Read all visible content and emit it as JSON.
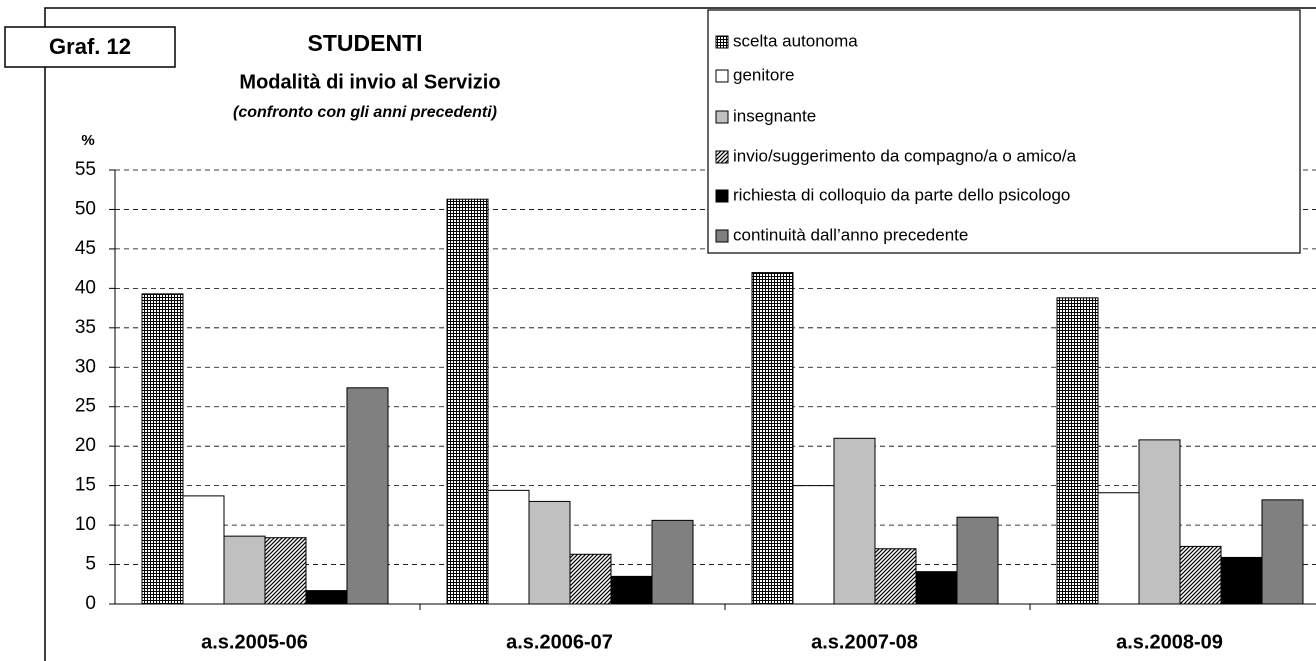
{
  "chart_data": {
    "type": "bar",
    "label": "Graf. 12",
    "title": "STUDENTI",
    "subtitle": "Modalità di invio al Servizio",
    "note": "(confronto con gli anni precedenti)",
    "y_label": "%",
    "categories": [
      "a.s.2005-06",
      "a.s.2006-07",
      "a.s.2007-08",
      "a.s.2008-09"
    ],
    "series": [
      {
        "name": "scelta autonoma",
        "color": "#808080",
        "pattern": "grid",
        "values": [
          39.3,
          51.3,
          42.0,
          38.8
        ]
      },
      {
        "name": "genitore",
        "color": "#ffffff",
        "values": [
          13.7,
          14.4,
          15.0,
          14.1
        ]
      },
      {
        "name": "insegnante",
        "color": "#c0c0c0",
        "values": [
          8.6,
          13.0,
          21.0,
          20.8
        ]
      },
      {
        "name": "invio/suggerimento da compagno/a o amico/a",
        "color": "#606060",
        "pattern": "diagonal",
        "values": [
          8.4,
          6.3,
          7.0,
          7.3
        ]
      },
      {
        "name": "richiesta di colloquio da parte dello psicologo",
        "color": "#000000",
        "values": [
          1.7,
          3.5,
          4.1,
          5.9
        ]
      },
      {
        "name": "continuità dall’anno precedente",
        "color": "#808080",
        "values": [
          27.4,
          10.6,
          11.0,
          13.2
        ]
      }
    ],
    "ylim": [
      0,
      55
    ],
    "yticks": [
      0,
      5,
      10,
      15,
      20,
      25,
      30,
      35,
      40,
      45,
      50,
      55
    ],
    "grid": true,
    "legend": "top-right"
  }
}
